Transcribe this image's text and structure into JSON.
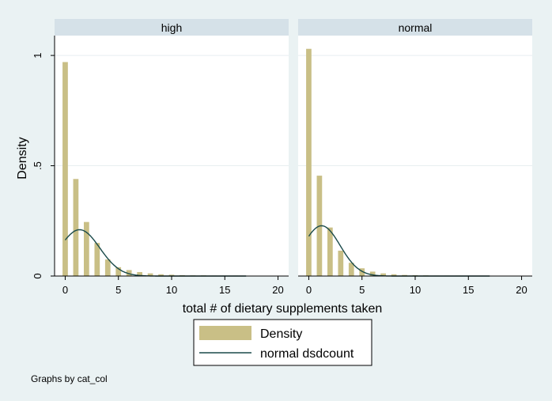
{
  "chart_data": {
    "type": "bar",
    "subtype": "histogram-with-normal-curve",
    "xlabel": "total # of dietary supplements taken",
    "ylabel": "Density",
    "xlim": [
      -1,
      21
    ],
    "ylim": [
      0,
      1.09
    ],
    "x_ticks": [
      0,
      5,
      10,
      15,
      20
    ],
    "x_tick_labels": [
      "0",
      "5",
      "10",
      "15",
      "20"
    ],
    "y_ticks": [
      0,
      0.5,
      1
    ],
    "y_tick_labels": [
      "0",
      ".5",
      "1"
    ],
    "grid": true,
    "legend": {
      "position": "bottom",
      "entries": [
        "Density",
        "normal dsdcount"
      ]
    },
    "note": "Graphs by cat_col",
    "colors": {
      "bar_fill": "#c9bf86",
      "curve": "#1a4a4a",
      "panel_header_bg": "#d5e1e8",
      "background": "#eaf2f3",
      "plot_bg": "#ffffff",
      "grid": "#e8eef0"
    },
    "panels": [
      {
        "title": "high",
        "bins_x": [
          0,
          1,
          2,
          3,
          4,
          5,
          6,
          7,
          8,
          9,
          10,
          11,
          12,
          13,
          14,
          15,
          16,
          17
        ],
        "density": [
          0.97,
          0.44,
          0.245,
          0.15,
          0.075,
          0.04,
          0.027,
          0.018,
          0.012,
          0.008,
          0.006,
          0.004,
          0.003,
          0.003,
          0.002,
          0.002,
          0.002,
          0.001
        ],
        "normal_mean": 1.35,
        "normal_sd": 1.9
      },
      {
        "title": "normal",
        "bins_x": [
          0,
          1,
          2,
          3,
          4,
          5,
          6,
          7,
          8,
          9,
          10,
          11,
          12,
          13,
          14,
          15,
          16,
          17
        ],
        "density": [
          1.03,
          0.455,
          0.22,
          0.115,
          0.06,
          0.035,
          0.02,
          0.012,
          0.008,
          0.005,
          0.004,
          0.003,
          0.002,
          0.002,
          0.002,
          0.001,
          0.001,
          0.001
        ],
        "normal_mean": 1.2,
        "normal_sd": 1.75
      }
    ]
  }
}
